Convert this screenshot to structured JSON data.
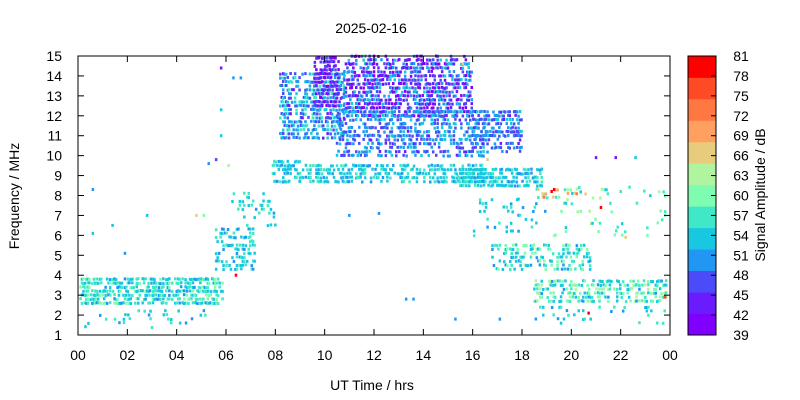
{
  "chart_data": {
    "type": "scatter",
    "subtype": "spectrogram",
    "title": "2025-02-16",
    "xlabel": "UT Time / hrs",
    "ylabel": "Frequency / MHz",
    "colorbar_label": "Signal Amplitude / dB",
    "xlim": [
      0,
      24
    ],
    "ylim": [
      1,
      15
    ],
    "x_ticks": [
      "00",
      "02",
      "04",
      "06",
      "08",
      "10",
      "12",
      "14",
      "16",
      "18",
      "20",
      "22",
      "00"
    ],
    "y_ticks": [
      "1",
      "2",
      "3",
      "4",
      "5",
      "6",
      "7",
      "8",
      "9",
      "10",
      "11",
      "12",
      "13",
      "14",
      "15"
    ],
    "colorbar": {
      "range": [
        39,
        81
      ],
      "tick_labels": [
        "39",
        "42",
        "45",
        "48",
        "51",
        "54",
        "57",
        "60",
        "63",
        "66",
        "69",
        "72",
        "75",
        "78",
        "81"
      ],
      "colors": [
        "#8000ff",
        "#6a1cff",
        "#4a4cf8",
        "#2196f3",
        "#18c8e0",
        "#40e8c8",
        "#7efcb0",
        "#b0f4a0",
        "#e8cc7e",
        "#ffa060",
        "#ff7842",
        "#ff4a26",
        "#ff0000"
      ]
    },
    "regions": [
      {
        "t": [
          0.1,
          5.9
        ],
        "f": [
          2.6,
          3.9
        ],
        "amp": [
          51,
          60
        ],
        "density": 0.55
      },
      {
        "t": [
          0.3,
          5.6
        ],
        "f": [
          1.4,
          2.3
        ],
        "amp": [
          51,
          57
        ],
        "density": 0.06
      },
      {
        "t": [
          5.6,
          7.2
        ],
        "f": [
          4.3,
          6.5
        ],
        "amp": [
          51,
          57
        ],
        "density": 0.35
      },
      {
        "t": [
          6.2,
          8.0
        ],
        "f": [
          6.5,
          8.2
        ],
        "amp": [
          51,
          57
        ],
        "density": 0.12
      },
      {
        "t": [
          7.9,
          9.0
        ],
        "f": [
          8.7,
          9.7
        ],
        "amp": [
          51,
          57
        ],
        "density": 0.5
      },
      {
        "t": [
          8.2,
          10.8
        ],
        "f": [
          10.9,
          14.2
        ],
        "amp": [
          45,
          57
        ],
        "density": 0.45
      },
      {
        "t": [
          9.6,
          10.6
        ],
        "f": [
          12.5,
          15.0
        ],
        "amp": [
          39,
          48
        ],
        "density": 0.5
      },
      {
        "t": [
          10.8,
          16.0
        ],
        "f": [
          12.0,
          15.0
        ],
        "amp": [
          39,
          54
        ],
        "density": 0.5
      },
      {
        "t": [
          10.5,
          16.5
        ],
        "f": [
          10.0,
          12.2
        ],
        "amp": [
          45,
          54
        ],
        "density": 0.35
      },
      {
        "t": [
          9.0,
          16.5
        ],
        "f": [
          8.7,
          9.5
        ],
        "amp": [
          51,
          57
        ],
        "density": 0.4
      },
      {
        "t": [
          16.0,
          18.0
        ],
        "f": [
          11.0,
          12.3
        ],
        "amp": [
          45,
          54
        ],
        "density": 0.4
      },
      {
        "t": [
          16.0,
          18.0
        ],
        "f": [
          10.2,
          11.2
        ],
        "amp": [
          45,
          51
        ],
        "density": 0.2
      },
      {
        "t": [
          15.5,
          18.8
        ],
        "f": [
          8.5,
          9.3
        ],
        "amp": [
          51,
          57
        ],
        "density": 0.55
      },
      {
        "t": [
          16.8,
          20.8
        ],
        "f": [
          4.3,
          5.7
        ],
        "amp": [
          51,
          60
        ],
        "density": 0.3
      },
      {
        "t": [
          18.6,
          21.5
        ],
        "f": [
          7.9,
          8.3
        ],
        "amp": [
          54,
          72
        ],
        "density": 0.25
      },
      {
        "t": [
          18.5,
          24.0
        ],
        "f": [
          2.7,
          3.8
        ],
        "amp": [
          51,
          63
        ],
        "density": 0.35
      },
      {
        "t": [
          18.5,
          24.0
        ],
        "f": [
          1.6,
          2.5
        ],
        "amp": [
          51,
          57
        ],
        "density": 0.08
      },
      {
        "t": [
          16.0,
          19.0
        ],
        "f": [
          6.0,
          8.0
        ],
        "amp": [
          51,
          57
        ],
        "density": 0.08
      },
      {
        "t": [
          19.0,
          24.0
        ],
        "f": [
          6.0,
          8.5
        ],
        "amp": [
          54,
          63
        ],
        "density": 0.04
      }
    ],
    "points": [
      {
        "t": 0.6,
        "f": 8.3,
        "amp": 51
      },
      {
        "t": 0.6,
        "f": 6.1,
        "amp": 54
      },
      {
        "t": 1.4,
        "f": 6.5,
        "amp": 54
      },
      {
        "t": 2.8,
        "f": 7.0,
        "amp": 54
      },
      {
        "t": 1.9,
        "f": 5.1,
        "amp": 51
      },
      {
        "t": 4.8,
        "f": 7.0,
        "amp": 66
      },
      {
        "t": 5.1,
        "f": 7.0,
        "amp": 60
      },
      {
        "t": 5.3,
        "f": 9.6,
        "amp": 51
      },
      {
        "t": 5.6,
        "f": 9.8,
        "amp": 48
      },
      {
        "t": 5.8,
        "f": 14.4,
        "amp": 45
      },
      {
        "t": 6.3,
        "f": 13.9,
        "amp": 51
      },
      {
        "t": 6.6,
        "f": 13.9,
        "amp": 51
      },
      {
        "t": 5.8,
        "f": 12.3,
        "amp": 54
      },
      {
        "t": 5.8,
        "f": 11.0,
        "amp": 54
      },
      {
        "t": 6.1,
        "f": 9.5,
        "amp": 63
      },
      {
        "t": 6.4,
        "f": 4.0,
        "amp": 78
      },
      {
        "t": 11.0,
        "f": 7.0,
        "amp": 51
      },
      {
        "t": 12.2,
        "f": 7.1,
        "amp": 51
      },
      {
        "t": 13.3,
        "f": 2.8,
        "amp": 51
      },
      {
        "t": 13.6,
        "f": 2.8,
        "amp": 51
      },
      {
        "t": 15.3,
        "f": 1.8,
        "amp": 51
      },
      {
        "t": 17.1,
        "f": 1.8,
        "amp": 51
      },
      {
        "t": 19.2,
        "f": 8.2,
        "amp": 78
      },
      {
        "t": 19.3,
        "f": 8.3,
        "amp": 81
      },
      {
        "t": 21.2,
        "f": 7.4,
        "amp": 78
      },
      {
        "t": 20.7,
        "f": 2.1,
        "amp": 78
      },
      {
        "t": 21.0,
        "f": 9.9,
        "amp": 45
      },
      {
        "t": 21.8,
        "f": 9.9,
        "amp": 45
      },
      {
        "t": 22.6,
        "f": 9.9,
        "amp": 54
      },
      {
        "t": 23.8,
        "f": 2.9,
        "amp": 75
      },
      {
        "t": 22.2,
        "f": 5.9,
        "amp": 66
      },
      {
        "t": 16.6,
        "f": 9.8,
        "amp": 66
      },
      {
        "t": 24.0,
        "f": 6.6,
        "amp": 54
      },
      {
        "t": 11.6,
        "f": 15.0,
        "amp": 60
      },
      {
        "t": 15.6,
        "f": 14.6,
        "amp": 66
      }
    ]
  }
}
